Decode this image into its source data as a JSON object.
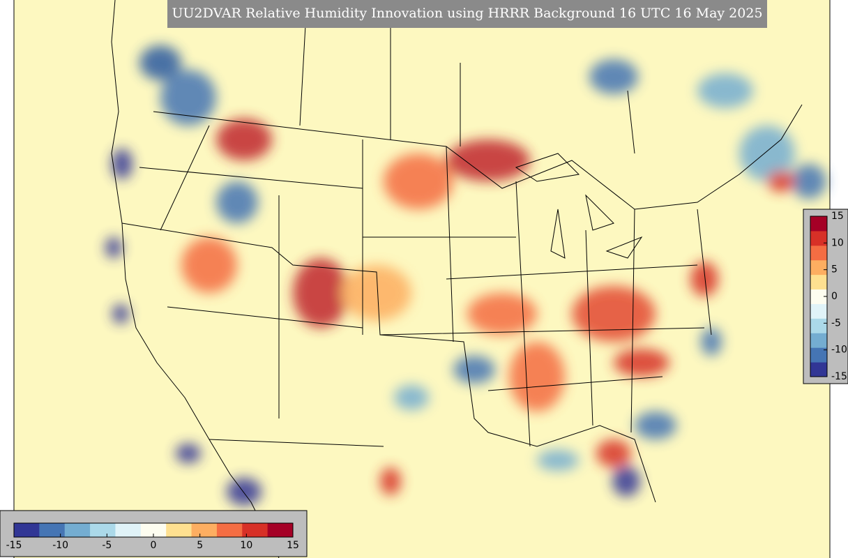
{
  "title": "UU2DVAR Relative Humidity Innovation using HRRR Background 16 UTC 16 May 2025",
  "colorbar_right": {
    "lim": [
      -15,
      15
    ],
    "ticks": [
      15,
      10,
      5,
      0,
      -5,
      -10,
      -15
    ]
  },
  "colorbar_bottom": {
    "lim": [
      -15,
      15
    ],
    "ticks": [
      -15,
      -10,
      -5,
      0,
      5,
      10,
      15
    ]
  },
  "colormap": [
    "#313695",
    "#4575b4",
    "#74add1",
    "#abd9e9",
    "#e0f3f8",
    "#fdfdf0",
    "#fee090",
    "#fdae61",
    "#f46d43",
    "#d73027",
    "#a50026"
  ]
}
